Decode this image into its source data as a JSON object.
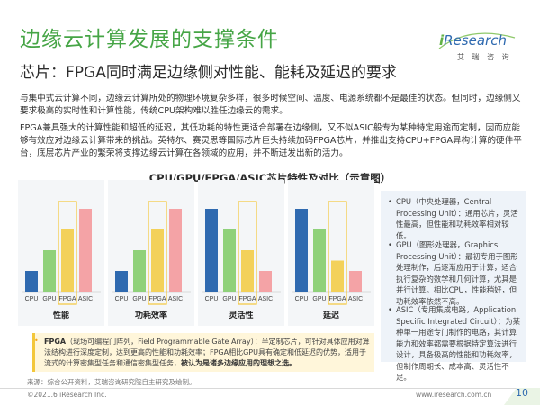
{
  "title": "边缘云计算发展的支撑条件",
  "subtitle": "芯片：FPGA同时满足边缘侧对性能、能耗及延迟的要求",
  "logo": {
    "brand_i": "i",
    "brand_rest": "Research",
    "sub": "艾 瑞 咨 询"
  },
  "paragraphs": {
    "p1": "与集中式云计算不同，边缘云计算所处的物理环境复杂多样，很多时候空间、温度、电源系统都不是最佳的状态。但同时，边缘侧又要求极高的实时性和计算性能，传统CPU架构难以胜任边缘云的需求。",
    "p2": "FPGA兼具强大的计算性能和超低的延迟，其低功耗的特性更适合部署在边缘侧，又不似ASIC般专为某种特定用途而定制，因而应能够有效应对边缘云计算带来的挑战。英特尔、赛灵思等国际芯片巨头持续加码FPGA芯片，并推出支持CPU+FPGA异构计算的硬件平台，底层芯片产业的繁荣将支撑边缘云计算在各领域的应用，并不断迸发出新的活力。"
  },
  "chart_title": "CPU/GPU/FPGA/ASIC芯片特性及对比（示意图）",
  "colors": {
    "green": "#46a546",
    "yellow": "#f3c73b",
    "blue": "#5b8fd0",
    "bar_blue": "#2f6ab0",
    "bar_green": "#8fd17a",
    "bar_yellow": "#f3d15a",
    "bar_pink": "#f4a3a6"
  },
  "chart_data": [
    {
      "type": "bar",
      "title": "性能",
      "categories": [
        "CPU",
        "GPU",
        "FPGA",
        "ASIC"
      ],
      "values": [
        1,
        2,
        3,
        4
      ],
      "highlight": "FPGA"
    },
    {
      "type": "bar",
      "title": "功耗效率",
      "categories": [
        "CPU",
        "GPU",
        "FPGA",
        "ASIC"
      ],
      "values": [
        1,
        2,
        3,
        4
      ],
      "highlight": "FPGA"
    },
    {
      "type": "bar",
      "title": "灵活性",
      "categories": [
        "CPU",
        "GPU",
        "FPGA",
        "ASIC"
      ],
      "values": [
        4,
        3,
        2,
        1
      ],
      "highlight": "FPGA"
    },
    {
      "type": "bar",
      "title": "延迟",
      "categories": [
        "CPU",
        "GPU",
        "FPGA",
        "ASIC"
      ],
      "values": [
        4,
        3,
        1.5,
        1
      ],
      "highlight": "FPGA"
    }
  ],
  "legend": [
    {
      "bullet": "•",
      "text": "CPU（中央处理器，Central Processing Unit）：通用芯片，灵活性最高，但性能和功耗效率相对较低。"
    },
    {
      "bullet": "•",
      "text": "GPU（图形处理器，Graphics Processing Unit）：最初专用于图形处理制作，后逐渐应用于计算，适合执行复杂的数学和几何计算，尤其是并行计算。相比CPU，性能稍好，但功耗效率依然不高。"
    },
    {
      "bullet": "•",
      "text": "ASIC（专用集成电路，Application Specific Integrated Circuit）：为某种单一用途专门制作的电路，其计算能力和效率都需要根据特定算法进行设计，具备极高的性能和功耗效率，但制作周期长、成本高、灵活性不足。"
    }
  ],
  "note": {
    "bullet": "•",
    "lead": "FPGA",
    "body": "（现场可编程门阵列，Field Programmable Gate Array）：半定制芯片，可针对具体应用对算法结构进行深度定制，达到更高的性能和功耗效率；FPGA相比GPU具有确定和低延迟的优势，适用于流式的计算密集型任务和通信密集型任务，",
    "emphasis": "被认为是诸多边缘应用的理想之选。"
  },
  "source": "来源：综合公开资料，艾瑞咨询研究院自主研究及绘制。",
  "footer": {
    "left": "©2021.6 iResearch Inc.",
    "right": "www.iresearch.com.cn",
    "page": "10"
  }
}
